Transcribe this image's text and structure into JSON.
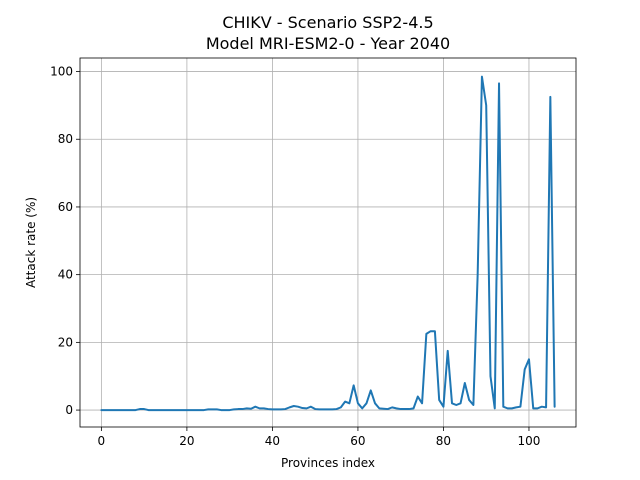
{
  "chart_data": {
    "type": "line",
    "title": "CHIKV - Scenario SSP2-4.5",
    "subtitle": "Model MRI-ESM2-0 - Year 2040",
    "xlabel": "Provinces index",
    "ylabel": "Attack rate (%)",
    "xlim": [
      -5,
      111
    ],
    "ylim": [
      -5,
      104
    ],
    "xticks": [
      0,
      20,
      40,
      60,
      80,
      100
    ],
    "yticks": [
      0,
      20,
      40,
      60,
      80,
      100
    ],
    "grid": true,
    "series": [
      {
        "color": "#1f77b4",
        "points": [
          [
            0,
            0
          ],
          [
            1,
            0
          ],
          [
            2,
            0
          ],
          [
            3,
            0
          ],
          [
            4,
            0
          ],
          [
            5,
            0
          ],
          [
            6,
            0
          ],
          [
            7,
            0
          ],
          [
            8,
            0
          ],
          [
            9,
            0.3
          ],
          [
            10,
            0.3
          ],
          [
            11,
            0
          ],
          [
            12,
            0
          ],
          [
            13,
            0
          ],
          [
            14,
            0
          ],
          [
            15,
            0
          ],
          [
            16,
            0
          ],
          [
            17,
            0
          ],
          [
            18,
            0
          ],
          [
            19,
            0
          ],
          [
            20,
            0
          ],
          [
            21,
            0
          ],
          [
            22,
            0
          ],
          [
            23,
            0
          ],
          [
            24,
            0
          ],
          [
            25,
            0.2
          ],
          [
            26,
            0.2
          ],
          [
            27,
            0.2
          ],
          [
            28,
            0
          ],
          [
            29,
            0
          ],
          [
            30,
            0
          ],
          [
            31,
            0.2
          ],
          [
            32,
            0.3
          ],
          [
            33,
            0.3
          ],
          [
            34,
            0.5
          ],
          [
            35,
            0.4
          ],
          [
            36,
            1.0
          ],
          [
            37,
            0.5
          ],
          [
            38,
            0.5
          ],
          [
            39,
            0.3
          ],
          [
            40,
            0.2
          ],
          [
            41,
            0.2
          ],
          [
            42,
            0.2
          ],
          [
            43,
            0.3
          ],
          [
            44,
            0.8
          ],
          [
            45,
            1.2
          ],
          [
            46,
            1.0
          ],
          [
            47,
            0.6
          ],
          [
            48,
            0.5
          ],
          [
            49,
            1.0
          ],
          [
            50,
            0.3
          ],
          [
            51,
            0.2
          ],
          [
            52,
            0.2
          ],
          [
            53,
            0.2
          ],
          [
            54,
            0.2
          ],
          [
            55,
            0.3
          ],
          [
            56,
            0.8
          ],
          [
            57,
            2.5
          ],
          [
            58,
            2.0
          ],
          [
            59,
            7.3
          ],
          [
            60,
            2.0
          ],
          [
            61,
            0.5
          ],
          [
            62,
            2.0
          ],
          [
            63,
            5.8
          ],
          [
            64,
            2.0
          ],
          [
            65,
            0.5
          ],
          [
            66,
            0.4
          ],
          [
            67,
            0.3
          ],
          [
            68,
            0.8
          ],
          [
            69,
            0.5
          ],
          [
            70,
            0.3
          ],
          [
            71,
            0.3
          ],
          [
            72,
            0.3
          ],
          [
            73,
            0.5
          ],
          [
            74,
            4.0
          ],
          [
            75,
            2.0
          ],
          [
            76,
            22.5
          ],
          [
            77,
            23.3
          ],
          [
            78,
            23.3
          ],
          [
            79,
            3.0
          ],
          [
            80,
            1.0
          ],
          [
            81,
            17.5
          ],
          [
            82,
            2.0
          ],
          [
            83,
            1.5
          ],
          [
            84,
            2.0
          ],
          [
            85,
            8.0
          ],
          [
            86,
            3.0
          ],
          [
            87,
            1.5
          ],
          [
            88,
            40.0
          ],
          [
            89,
            98.5
          ],
          [
            90,
            90.0
          ],
          [
            91,
            10.0
          ],
          [
            92,
            0.5
          ],
          [
            93,
            96.5
          ],
          [
            94,
            1.0
          ],
          [
            95,
            0.5
          ],
          [
            96,
            0.5
          ],
          [
            97,
            0.8
          ],
          [
            98,
            1.0
          ],
          [
            99,
            12.0
          ],
          [
            100,
            15.0
          ],
          [
            101,
            0.5
          ],
          [
            102,
            0.5
          ],
          [
            103,
            1.0
          ],
          [
            104,
            0.8
          ],
          [
            105,
            92.5
          ],
          [
            106,
            1.0
          ]
        ]
      }
    ]
  }
}
